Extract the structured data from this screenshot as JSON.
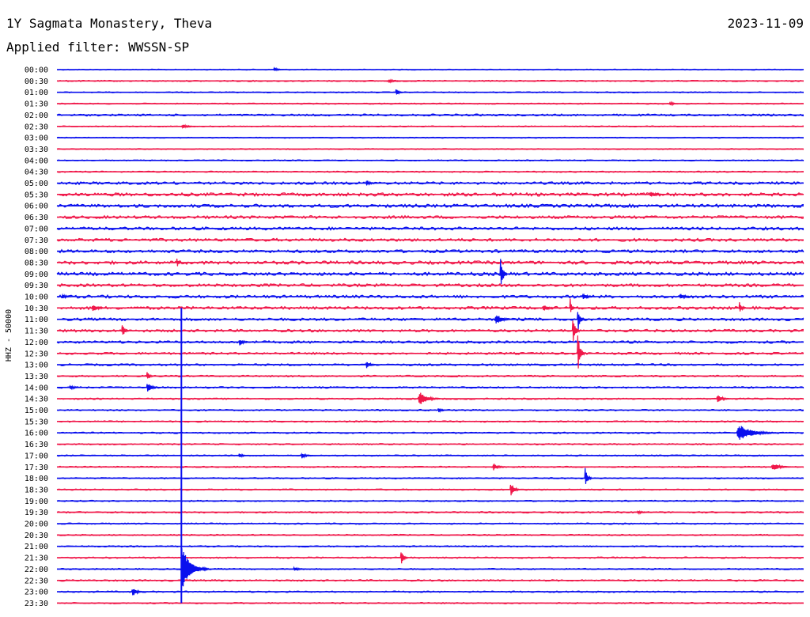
{
  "header": {
    "station": "1Y Sagmata Monastery, Theva",
    "date": "2023-11-09",
    "filter_line": "Applied filter: WWSSN-SP"
  },
  "chart_data": {
    "type": "line",
    "subtype": "helicorder",
    "ylabel": "HHZ - 50000",
    "colors": [
      "#0a10ee",
      "#f0184a"
    ],
    "rows": [
      "00:00",
      "00:30",
      "01:00",
      "01:30",
      "02:00",
      "02:30",
      "03:00",
      "03:30",
      "04:00",
      "04:30",
      "05:00",
      "05:30",
      "06:00",
      "06:30",
      "07:00",
      "07:30",
      "08:00",
      "08:30",
      "09:00",
      "09:30",
      "10:00",
      "10:30",
      "11:00",
      "11:30",
      "12:00",
      "12:30",
      "13:00",
      "13:30",
      "14:00",
      "14:30",
      "15:00",
      "15:30",
      "16:00",
      "16:30",
      "17:00",
      "17:30",
      "18:00",
      "18:30",
      "19:00",
      "19:30",
      "20:00",
      "20:30",
      "21:00",
      "21:30",
      "22:00",
      "22:30",
      "23:00",
      "23:30"
    ],
    "minutes_per_row": 30,
    "noise": [
      0.6,
      0.8,
      0.6,
      0.7,
      1.2,
      0.6,
      0.6,
      0.6,
      0.7,
      0.8,
      1.6,
      2.0,
      2.0,
      1.8,
      1.8,
      1.8,
      1.8,
      2.0,
      2.0,
      1.8,
      1.8,
      1.8,
      1.6,
      1.6,
      1.5,
      1.3,
      1.2,
      1.0,
      1.0,
      0.9,
      0.9,
      0.9,
      0.9,
      0.8,
      0.8,
      0.8,
      0.8,
      0.8,
      0.8,
      0.9,
      0.8,
      0.8,
      0.8,
      0.9,
      0.8,
      1.0,
      0.9,
      0.8
    ],
    "events": [
      {
        "row": 0,
        "minute": 8.7,
        "amp": 4,
        "dur": 0.4
      },
      {
        "row": 1,
        "minute": 13.3,
        "amp": 3,
        "dur": 0.6
      },
      {
        "row": 2,
        "minute": 13.6,
        "amp": 8,
        "dur": 0.3
      },
      {
        "row": 3,
        "minute": 24.6,
        "amp": 4,
        "dur": 0.4
      },
      {
        "row": 5,
        "minute": 5.0,
        "amp": 3,
        "dur": 0.8
      },
      {
        "row": 10,
        "minute": 12.4,
        "amp": 5,
        "dur": 0.5
      },
      {
        "row": 11,
        "minute": 23.8,
        "amp": 5,
        "dur": 0.7
      },
      {
        "row": 17,
        "minute": 4.8,
        "amp": 10,
        "dur": 0.2
      },
      {
        "row": 18,
        "minute": 17.8,
        "amp": 30,
        "dur": 0.3
      },
      {
        "row": 20,
        "minute": 0.2,
        "amp": 5,
        "dur": 0.4
      },
      {
        "row": 20,
        "minute": 21.1,
        "amp": 6,
        "dur": 0.5
      },
      {
        "row": 20,
        "minute": 25.0,
        "amp": 5,
        "dur": 0.6
      },
      {
        "row": 21,
        "minute": 1.4,
        "amp": 7,
        "dur": 0.6
      },
      {
        "row": 21,
        "minute": 19.5,
        "amp": 6,
        "dur": 0.6
      },
      {
        "row": 21,
        "minute": 20.6,
        "amp": 20,
        "dur": 0.2
      },
      {
        "row": 21,
        "minute": 27.4,
        "amp": 10,
        "dur": 0.3
      },
      {
        "row": 22,
        "minute": 17.6,
        "amp": 9,
        "dur": 0.7
      },
      {
        "row": 22,
        "minute": 20.9,
        "amp": 22,
        "dur": 0.3
      },
      {
        "row": 23,
        "minute": 2.6,
        "amp": 12,
        "dur": 0.3
      },
      {
        "row": 23,
        "minute": 20.7,
        "amp": 30,
        "dur": 0.3
      },
      {
        "row": 24,
        "minute": 7.3,
        "amp": 6,
        "dur": 0.5
      },
      {
        "row": 25,
        "minute": 20.9,
        "amp": 40,
        "dur": 0.3
      },
      {
        "row": 26,
        "minute": 12.4,
        "amp": 6,
        "dur": 0.5
      },
      {
        "row": 27,
        "minute": 3.6,
        "amp": 8,
        "dur": 0.3
      },
      {
        "row": 28,
        "minute": 0.5,
        "amp": 4,
        "dur": 0.5
      },
      {
        "row": 28,
        "minute": 3.6,
        "amp": 9,
        "dur": 0.5
      },
      {
        "row": 29,
        "minute": 14.5,
        "amp": 12,
        "dur": 0.9
      },
      {
        "row": 29,
        "minute": 26.5,
        "amp": 7,
        "dur": 0.6
      },
      {
        "row": 30,
        "minute": 15.3,
        "amp": 4,
        "dur": 0.4
      },
      {
        "row": 32,
        "minute": 27.3,
        "amp": 14,
        "dur": 1.6
      },
      {
        "row": 34,
        "minute": 7.3,
        "amp": 4,
        "dur": 0.4
      },
      {
        "row": 34,
        "minute": 9.8,
        "amp": 5,
        "dur": 0.5
      },
      {
        "row": 35,
        "minute": 17.5,
        "amp": 6,
        "dur": 0.6
      },
      {
        "row": 35,
        "minute": 28.7,
        "amp": 7,
        "dur": 0.8
      },
      {
        "row": 36,
        "minute": 21.2,
        "amp": 18,
        "dur": 0.3
      },
      {
        "row": 37,
        "minute": 18.2,
        "amp": 14,
        "dur": 0.4
      },
      {
        "row": 39,
        "minute": 23.3,
        "amp": 3,
        "dur": 0.6
      },
      {
        "row": 43,
        "minute": 13.8,
        "amp": 14,
        "dur": 0.3
      },
      {
        "row": 44,
        "minute": 5.0,
        "amp": 20,
        "dur": 1.0
      },
      {
        "row": 44,
        "minute": 9.5,
        "amp": 4,
        "dur": 0.5
      },
      {
        "row": 46,
        "minute": 3.0,
        "amp": 8,
        "dur": 0.5
      }
    ],
    "large_event": {
      "start_row": 21,
      "end_row": 47,
      "minute": 5.0,
      "peak_row": 44,
      "peak_amp": 32
    }
  }
}
